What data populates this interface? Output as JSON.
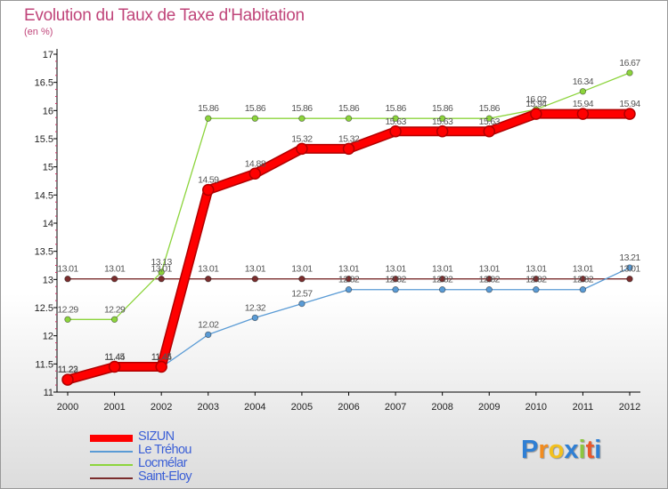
{
  "title": "Evolution du Taux de Taxe d'Habitation",
  "unit_label": "(en %)",
  "logo": {
    "chars": [
      "P",
      "r",
      "o",
      "x",
      "i",
      "t",
      "i"
    ],
    "colors": [
      "#2f7fd4",
      "#f28c1e",
      "#f2c01e",
      "#2f7fd4",
      "#8cc63f",
      "#e8572b",
      "#2f7fd4"
    ]
  },
  "chart_data": {
    "type": "line",
    "title": "Evolution du Taux de Taxe d'Habitation",
    "ylabel": "(en %)",
    "xlabel": "",
    "ylim": [
      11,
      17
    ],
    "y_ticks": [
      "11",
      "11.5",
      "12",
      "12.5",
      "13",
      "13.5",
      "14",
      "14.5",
      "15",
      "15.5",
      "16",
      "16.5",
      "17"
    ],
    "x": [
      "2000",
      "2001",
      "2002",
      "2003",
      "2004",
      "2005",
      "2006",
      "2007",
      "2008",
      "2009",
      "2010",
      "2011",
      "2012"
    ],
    "series": [
      {
        "name": "Saint-Eloy",
        "color": "#7a2d2d",
        "values": [
          13.01,
          13.01,
          13.01,
          13.01,
          13.01,
          13.01,
          13.01,
          13.01,
          13.01,
          13.01,
          13.01,
          13.01,
          13.01
        ],
        "labels": [
          "13.01",
          "13.01",
          "13.01",
          "13.01",
          "13.01",
          "13.01",
          "13.01",
          "13.01",
          "13.01",
          "13.01",
          "13.01",
          "13.01",
          "13.01"
        ]
      },
      {
        "name": "Locmélar",
        "color": "#8cd43c",
        "values": [
          12.29,
          12.29,
          13.13,
          15.86,
          15.86,
          15.86,
          15.86,
          15.86,
          15.86,
          15.86,
          16.02,
          16.34,
          16.67
        ],
        "labels": [
          "12.29",
          "12.29",
          "13.13",
          "15.86",
          "15.86",
          "15.86",
          "15.86",
          "15.86",
          "15.86",
          "15.86",
          "16.02",
          "16.34",
          "16.67"
        ]
      },
      {
        "name": "Le Tréhou",
        "color": "#5a9bd5",
        "values": [
          11.23,
          11.44,
          11.44,
          12.02,
          12.32,
          12.57,
          12.82,
          12.82,
          12.82,
          12.82,
          12.82,
          12.82,
          13.21
        ],
        "labels": [
          "11.23",
          "11.44",
          "11.44",
          "12.02",
          "12.32",
          "12.57",
          "12.82",
          "12.82",
          "12.82",
          "12.82",
          "12.82",
          "12.82",
          "13.21"
        ]
      },
      {
        "name": "SIZUN",
        "color": "#ff0000",
        "values": [
          11.22,
          11.45,
          11.45,
          14.59,
          14.88,
          15.32,
          15.32,
          15.63,
          15.63,
          15.63,
          15.94,
          15.94,
          15.94
        ],
        "labels": [
          "11.22",
          "11.45",
          "11.45",
          "14.59",
          "14.88",
          "15.32",
          "15.32",
          "15.63",
          "15.63",
          "15.63",
          "15.94",
          "15.94",
          "15.94"
        ]
      }
    ],
    "legend": [
      "SIZUN",
      "Le Tréhou",
      "Locmélar",
      "Saint-Eloy"
    ],
    "legend_position": "bottom-left",
    "grid": false
  }
}
